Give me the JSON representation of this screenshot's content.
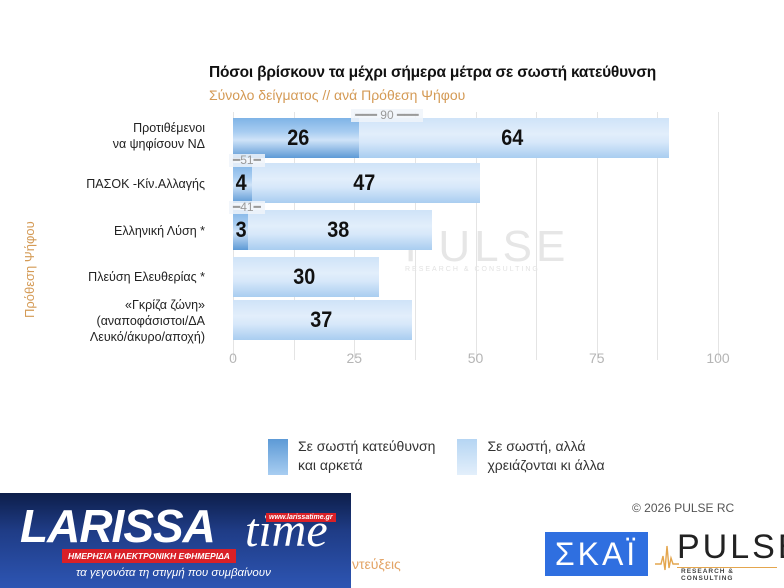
{
  "header": {
    "title": "Πόσοι βρίσκουν τα μέχρι σήμερα μέτρα σε σωστή κατεύθυνση",
    "subtitle": "Σύνολο δείγματος // ανά Πρόθεση  Ψήφου"
  },
  "axis": {
    "y_title": "Πρόθεση  Ψήφου",
    "ticks": [
      "0",
      "25",
      "50",
      "75",
      "100"
    ]
  },
  "categories": [
    {
      "label_lines": [
        "Προτιθέμενοι",
        "να ψηφίσουν ΝΔ"
      ],
      "dark": 26,
      "light": 64,
      "total": "90",
      "dark_label": "26",
      "light_label": "64",
      "total_label": "90"
    },
    {
      "label_lines": [
        "ΠΑΣΟΚ -Κίν.Αλλαγής"
      ],
      "dark": 4,
      "light": 47,
      "total": "51",
      "dark_label": "4",
      "light_label": "47",
      "total_label": "51"
    },
    {
      "label_lines": [
        "Ελληνική Λύση *"
      ],
      "dark": 3,
      "light": 38,
      "total": "41",
      "dark_label": "3",
      "light_label": "38",
      "total_label": "41"
    },
    {
      "label_lines": [
        "Πλεύση Ελευθερίας *"
      ],
      "dark": 0,
      "light": 30,
      "total": "",
      "dark_label": "",
      "light_label": "30",
      "total_label": ""
    },
    {
      "label_lines": [
        "«Γκρίζα ζώνη»",
        "(αναποφάσιστοι/ΔΑ",
        "Λευκό/άκυρο/αποχή)"
      ],
      "dark": 0,
      "light": 37,
      "total": "",
      "dark_label": "",
      "light_label": "37",
      "total_label": ""
    }
  ],
  "legend": {
    "dark_line1": "Σε σωστή κατεύθυνση",
    "dark_line2": "και αρκετά",
    "light_line1": "Σε σωστή, αλλά",
    "light_line2": "χρειάζονται κι άλλα"
  },
  "watermark": {
    "word": "PULSE",
    "sub": "RESEARCH & CONSULTING"
  },
  "footer": {
    "copyright": "©  2026  PULSE RC",
    "skai_logo": "ΣΚΑΪ",
    "pulse_logo": "PULSE",
    "pulse_sub": "RESEARCH & CONSULTING",
    "cut_text": "ντεύξεις"
  },
  "banner": {
    "brand": "LARISSA",
    "brand_time": "time",
    "url": "www.larissatime.gr",
    "tagline": "ΗΜΕΡΗΣΙΑ ΗΛΕΚΤΡΟΝΙΚΗ ΕΦΗΜΕΡΙΔΑ",
    "slogan": "τα γεγονότα τη στιγμή που συμβαίνουν"
  },
  "colors": {
    "dark_series": "#5d9ad6",
    "light_series": "#cfe3f8",
    "subtitle": "#d49a55",
    "skai_blue": "#2f6fe0",
    "banner_red": "#d92027"
  },
  "chart_data": {
    "type": "bar",
    "orientation": "horizontal",
    "stacked": true,
    "title": "Πόσοι βρίσκουν τα μέχρι σήμερα μέτρα σε σωστή κατεύθυνση",
    "subtitle": "Σύνολο δείγματος // ανά Πρόθεση  Ψήφου",
    "xlabel": "",
    "ylabel": "Πρόθεση  Ψήφου",
    "xlim": [
      0,
      100
    ],
    "xticks": [
      0,
      25,
      50,
      75,
      100
    ],
    "grid": true,
    "categories": [
      "Προτιθέμενοι να ψηφίσουν ΝΔ",
      "ΠΑΣΟΚ -Κίν.Αλλαγής",
      "Ελληνική Λύση *",
      "Πλεύση Ελευθερίας *",
      "«Γκρίζα ζώνη» (αναποφάσιστοι/ΔΑ Λευκό/άκυρο/αποχή)"
    ],
    "series": [
      {
        "name": "Σε σωστή κατεύθυνση και αρκετά",
        "values": [
          26,
          4,
          3,
          0,
          0
        ]
      },
      {
        "name": "Σε σωστή, αλλά χρειάζονται κι άλλα",
        "values": [
          64,
          47,
          38,
          30,
          37
        ]
      }
    ],
    "totals": [
      90,
      51,
      41,
      30,
      37
    ],
    "legend_position": "bottom"
  }
}
